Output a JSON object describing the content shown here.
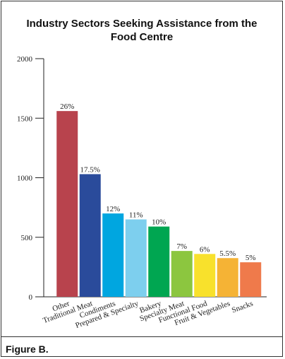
{
  "chart_data": {
    "type": "bar",
    "title": "Industry Sectors Seeking Assistance from the Food Centre",
    "categories": [
      "Other",
      "Traditional Meat",
      "Condiments",
      "Prepared & Specialty",
      "Bakery",
      "Specialty Meat",
      "Functional Food",
      "Fruit & Vegetables",
      "Snacks"
    ],
    "values": [
      1560,
      1030,
      700,
      650,
      590,
      385,
      360,
      325,
      290
    ],
    "annotations": [
      "26%",
      "17.5%",
      "12%",
      "11%",
      "10%",
      "7%",
      "6%",
      "5.5%",
      "5%"
    ],
    "colors": [
      "#b8434d",
      "#2a4b9b",
      "#00a6e0",
      "#7dcfee",
      "#00a651",
      "#8cc63f",
      "#f8e12c",
      "#f5b335",
      "#ef7a4b"
    ],
    "ylim": [
      0,
      2000
    ],
    "yticks": [
      0,
      500,
      1000,
      1500,
      2000
    ],
    "grid": false,
    "caption": "Figure B."
  }
}
